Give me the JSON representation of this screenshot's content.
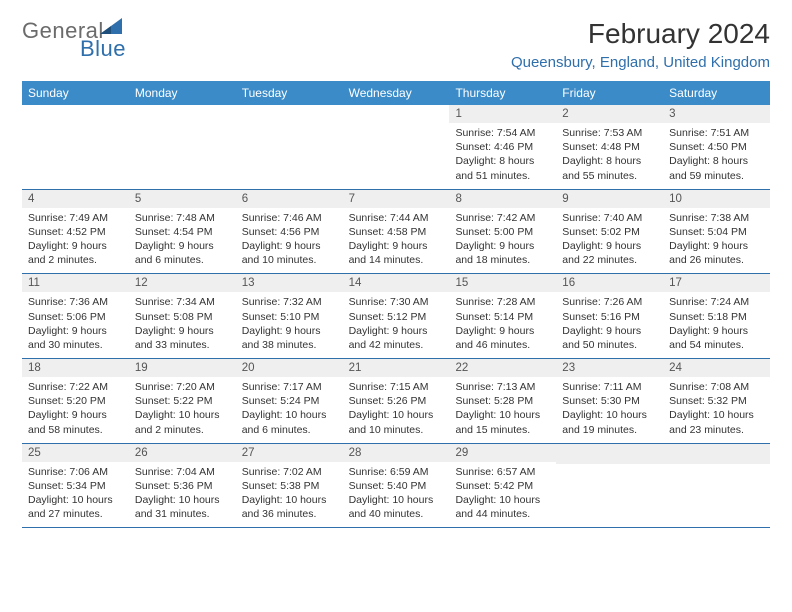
{
  "logo": {
    "text1": "General",
    "text2": "Blue"
  },
  "title": "February 2024",
  "location": "Queensbury, England, United Kingdom",
  "location_color": "#2f6fab",
  "header_bg": "#3b8bc9",
  "accent_color": "#2f6fab",
  "daynum_bg": "#efefef",
  "day_headers": [
    "Sunday",
    "Monday",
    "Tuesday",
    "Wednesday",
    "Thursday",
    "Friday",
    "Saturday"
  ],
  "weeks": [
    [
      {
        "num": "",
        "lines": []
      },
      {
        "num": "",
        "lines": []
      },
      {
        "num": "",
        "lines": []
      },
      {
        "num": "",
        "lines": []
      },
      {
        "num": "1",
        "lines": [
          "Sunrise: 7:54 AM",
          "Sunset: 4:46 PM",
          "Daylight: 8 hours and 51 minutes."
        ]
      },
      {
        "num": "2",
        "lines": [
          "Sunrise: 7:53 AM",
          "Sunset: 4:48 PM",
          "Daylight: 8 hours and 55 minutes."
        ]
      },
      {
        "num": "3",
        "lines": [
          "Sunrise: 7:51 AM",
          "Sunset: 4:50 PM",
          "Daylight: 8 hours and 59 minutes."
        ]
      }
    ],
    [
      {
        "num": "4",
        "lines": [
          "Sunrise: 7:49 AM",
          "Sunset: 4:52 PM",
          "Daylight: 9 hours and 2 minutes."
        ]
      },
      {
        "num": "5",
        "lines": [
          "Sunrise: 7:48 AM",
          "Sunset: 4:54 PM",
          "Daylight: 9 hours and 6 minutes."
        ]
      },
      {
        "num": "6",
        "lines": [
          "Sunrise: 7:46 AM",
          "Sunset: 4:56 PM",
          "Daylight: 9 hours and 10 minutes."
        ]
      },
      {
        "num": "7",
        "lines": [
          "Sunrise: 7:44 AM",
          "Sunset: 4:58 PM",
          "Daylight: 9 hours and 14 minutes."
        ]
      },
      {
        "num": "8",
        "lines": [
          "Sunrise: 7:42 AM",
          "Sunset: 5:00 PM",
          "Daylight: 9 hours and 18 minutes."
        ]
      },
      {
        "num": "9",
        "lines": [
          "Sunrise: 7:40 AM",
          "Sunset: 5:02 PM",
          "Daylight: 9 hours and 22 minutes."
        ]
      },
      {
        "num": "10",
        "lines": [
          "Sunrise: 7:38 AM",
          "Sunset: 5:04 PM",
          "Daylight: 9 hours and 26 minutes."
        ]
      }
    ],
    [
      {
        "num": "11",
        "lines": [
          "Sunrise: 7:36 AM",
          "Sunset: 5:06 PM",
          "Daylight: 9 hours and 30 minutes."
        ]
      },
      {
        "num": "12",
        "lines": [
          "Sunrise: 7:34 AM",
          "Sunset: 5:08 PM",
          "Daylight: 9 hours and 33 minutes."
        ]
      },
      {
        "num": "13",
        "lines": [
          "Sunrise: 7:32 AM",
          "Sunset: 5:10 PM",
          "Daylight: 9 hours and 38 minutes."
        ]
      },
      {
        "num": "14",
        "lines": [
          "Sunrise: 7:30 AM",
          "Sunset: 5:12 PM",
          "Daylight: 9 hours and 42 minutes."
        ]
      },
      {
        "num": "15",
        "lines": [
          "Sunrise: 7:28 AM",
          "Sunset: 5:14 PM",
          "Daylight: 9 hours and 46 minutes."
        ]
      },
      {
        "num": "16",
        "lines": [
          "Sunrise: 7:26 AM",
          "Sunset: 5:16 PM",
          "Daylight: 9 hours and 50 minutes."
        ]
      },
      {
        "num": "17",
        "lines": [
          "Sunrise: 7:24 AM",
          "Sunset: 5:18 PM",
          "Daylight: 9 hours and 54 minutes."
        ]
      }
    ],
    [
      {
        "num": "18",
        "lines": [
          "Sunrise: 7:22 AM",
          "Sunset: 5:20 PM",
          "Daylight: 9 hours and 58 minutes."
        ]
      },
      {
        "num": "19",
        "lines": [
          "Sunrise: 7:20 AM",
          "Sunset: 5:22 PM",
          "Daylight: 10 hours and 2 minutes."
        ]
      },
      {
        "num": "20",
        "lines": [
          "Sunrise: 7:17 AM",
          "Sunset: 5:24 PM",
          "Daylight: 10 hours and 6 minutes."
        ]
      },
      {
        "num": "21",
        "lines": [
          "Sunrise: 7:15 AM",
          "Sunset: 5:26 PM",
          "Daylight: 10 hours and 10 minutes."
        ]
      },
      {
        "num": "22",
        "lines": [
          "Sunrise: 7:13 AM",
          "Sunset: 5:28 PM",
          "Daylight: 10 hours and 15 minutes."
        ]
      },
      {
        "num": "23",
        "lines": [
          "Sunrise: 7:11 AM",
          "Sunset: 5:30 PM",
          "Daylight: 10 hours and 19 minutes."
        ]
      },
      {
        "num": "24",
        "lines": [
          "Sunrise: 7:08 AM",
          "Sunset: 5:32 PM",
          "Daylight: 10 hours and 23 minutes."
        ]
      }
    ],
    [
      {
        "num": "25",
        "lines": [
          "Sunrise: 7:06 AM",
          "Sunset: 5:34 PM",
          "Daylight: 10 hours and 27 minutes."
        ]
      },
      {
        "num": "26",
        "lines": [
          "Sunrise: 7:04 AM",
          "Sunset: 5:36 PM",
          "Daylight: 10 hours and 31 minutes."
        ]
      },
      {
        "num": "27",
        "lines": [
          "Sunrise: 7:02 AM",
          "Sunset: 5:38 PM",
          "Daylight: 10 hours and 36 minutes."
        ]
      },
      {
        "num": "28",
        "lines": [
          "Sunrise: 6:59 AM",
          "Sunset: 5:40 PM",
          "Daylight: 10 hours and 40 minutes."
        ]
      },
      {
        "num": "29",
        "lines": [
          "Sunrise: 6:57 AM",
          "Sunset: 5:42 PM",
          "Daylight: 10 hours and 44 minutes."
        ]
      },
      {
        "num": "",
        "lines": []
      },
      {
        "num": "",
        "lines": []
      }
    ]
  ]
}
